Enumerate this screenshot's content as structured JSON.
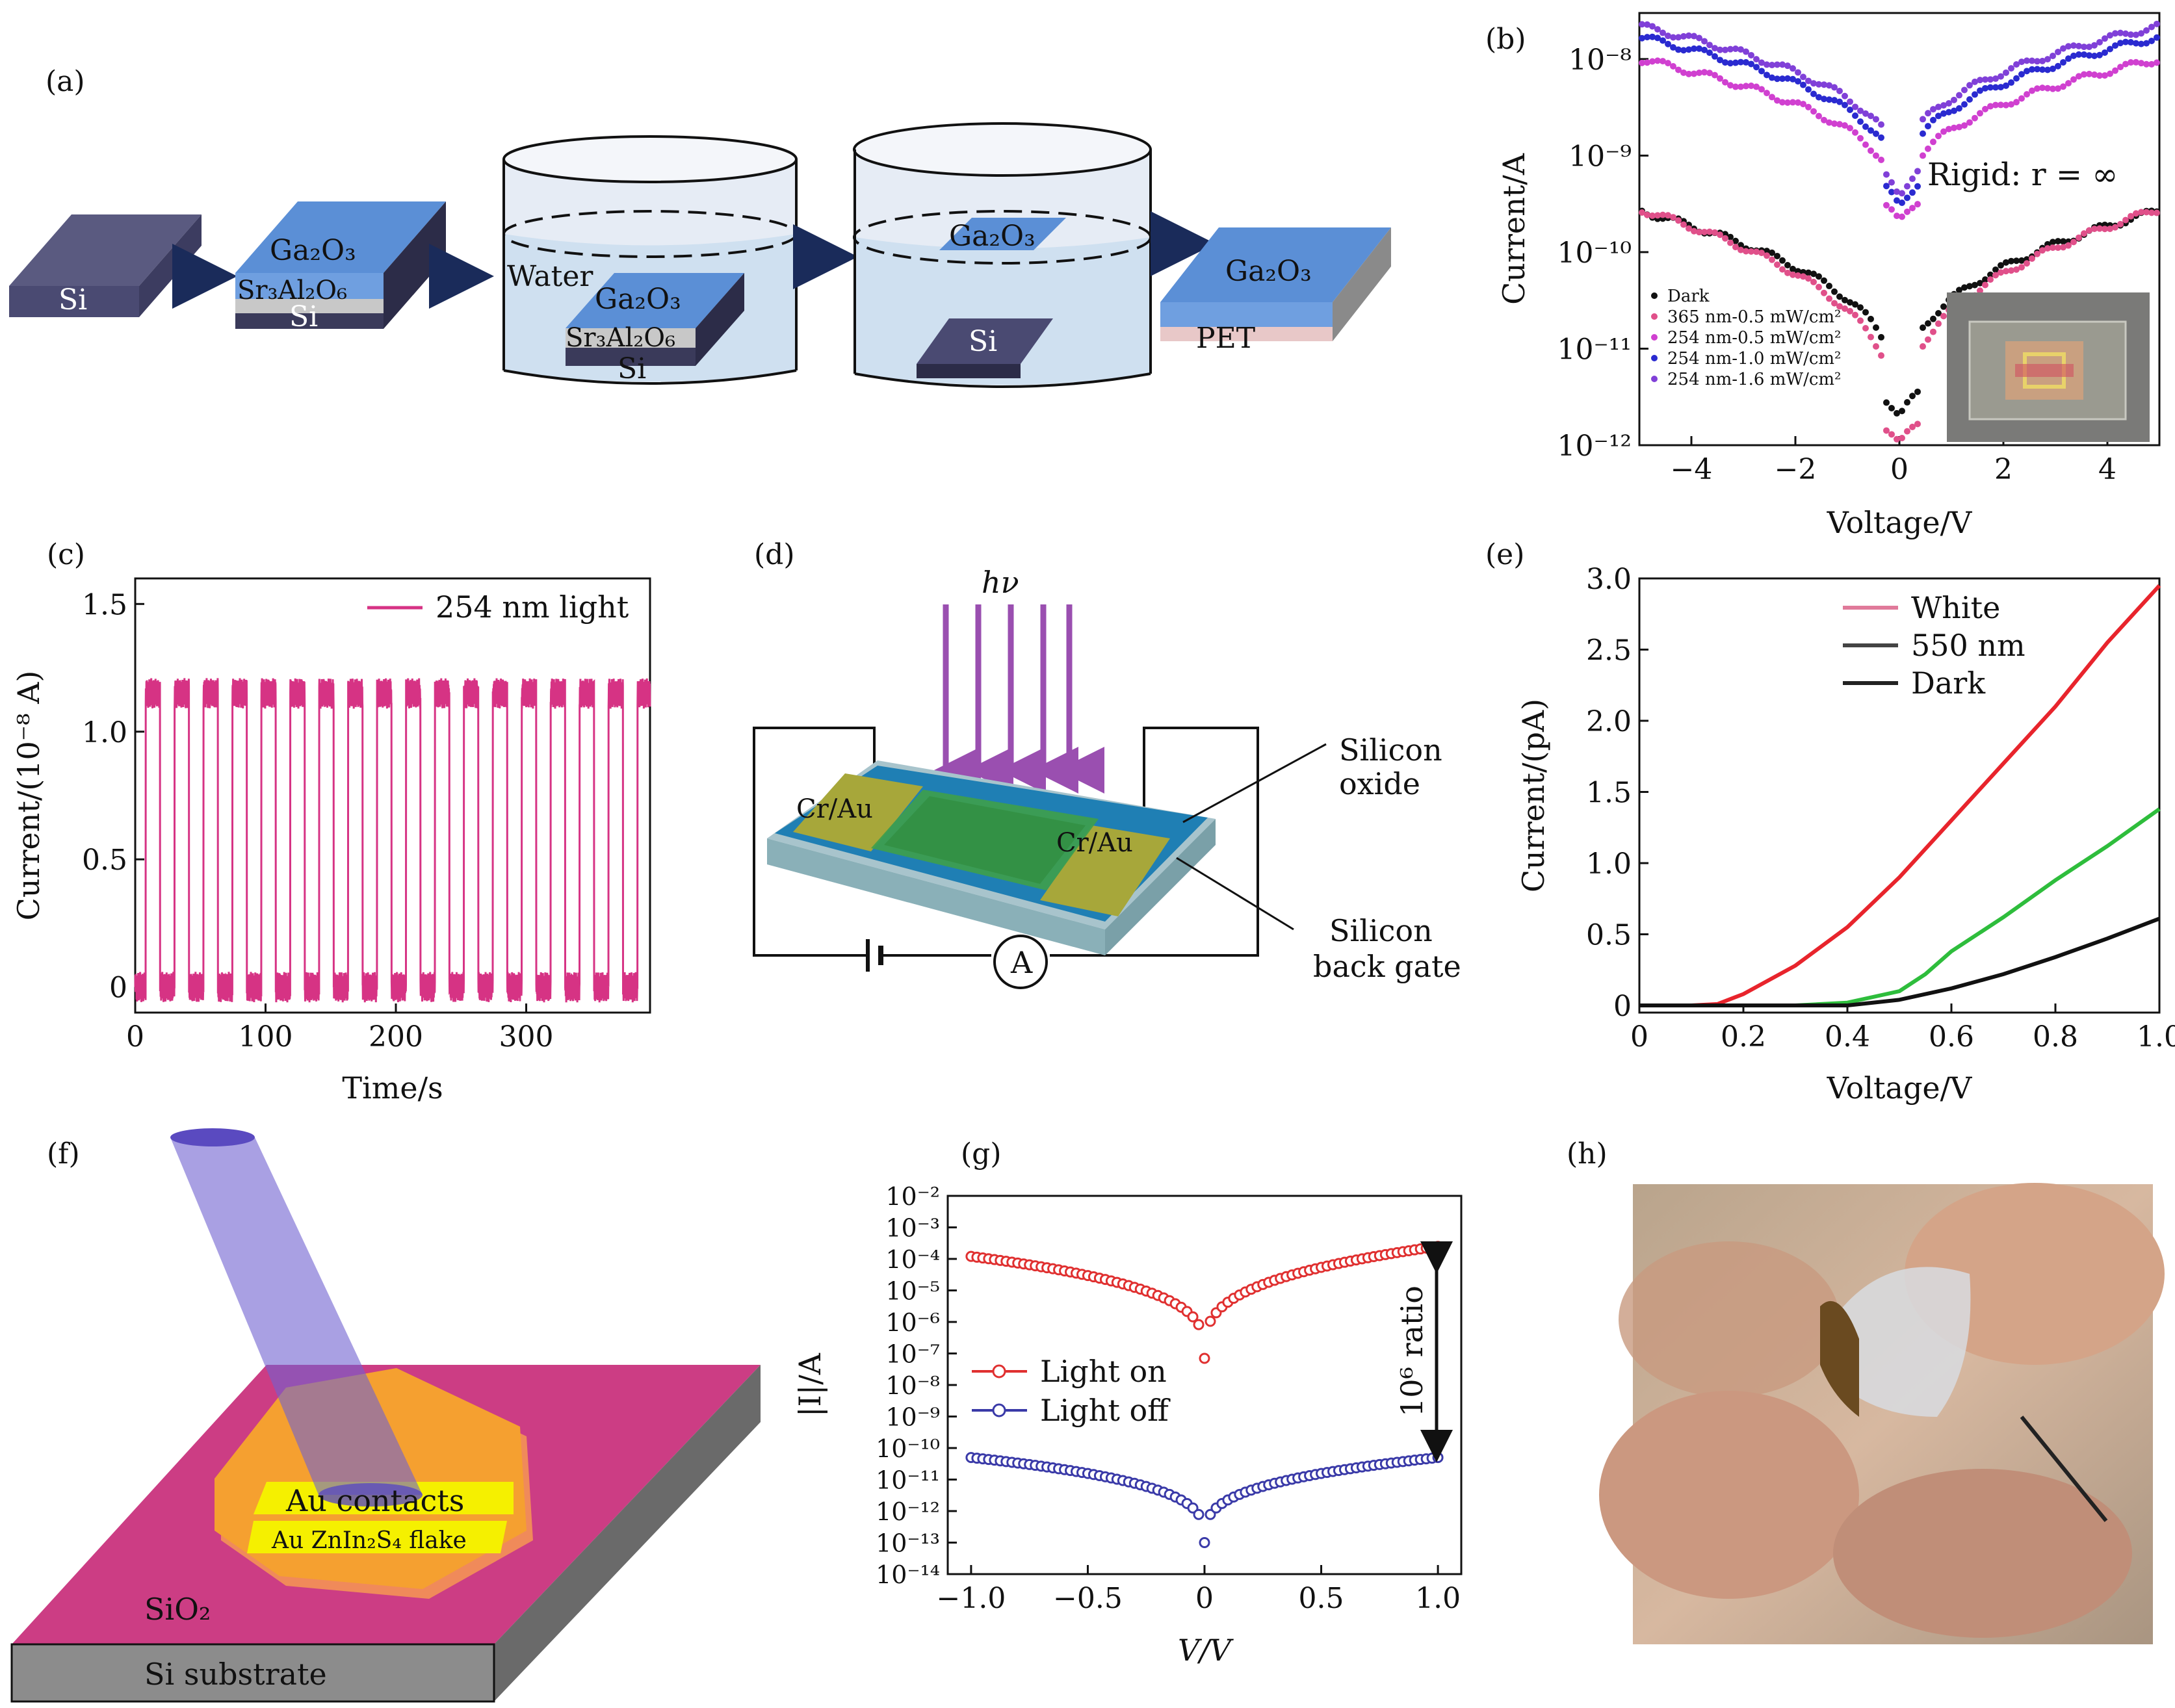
{
  "panels": {
    "a": {
      "label": "(a)",
      "texts": {
        "si": "Si",
        "ga2o3": "Ga₂O₃",
        "sr3al2o6": "Sr₃Al₂O₆",
        "water": "Water",
        "pet": "PET"
      }
    },
    "b": {
      "label": "(b)",
      "annotation": "Rigid: r = ∞",
      "inset_icon": "device-photo-icon"
    },
    "c": {
      "label": "(c)"
    },
    "d": {
      "label": "(d)",
      "texts": {
        "hv": "hν",
        "cr_au": "Cr/Au",
        "silicon_oxide_1": "Silicon",
        "silicon_oxide_2": "oxide",
        "silicon_gate_1": "Silicon",
        "silicon_gate_2": "back gate",
        "ammeter": "A"
      }
    },
    "e": {
      "label": "(e)"
    },
    "f": {
      "label": "(f)",
      "texts": {
        "au_contacts": "Au contacts",
        "flake": "Au ZnIn₂S₄ flake",
        "sio2": "SiO₂",
        "substrate": "Si substrate"
      }
    },
    "g": {
      "label": "(g)",
      "ratio": "10⁶ ratio"
    },
    "h": {
      "label": "(h)",
      "photo_icon": "bent-device-photo-icon"
    }
  },
  "chart_data": [
    {
      "id": "b",
      "type": "scatter",
      "title": "",
      "xlabel": "Voltage/V",
      "ylabel": "Current/A",
      "yscale": "log",
      "xlim": [
        -5,
        5
      ],
      "ylim": [
        1e-12,
        3e-08
      ],
      "xticks": [
        "−4",
        "−2",
        "0",
        "2",
        "4"
      ],
      "yticks": [
        "10⁻¹²",
        "10⁻¹¹",
        "10⁻¹⁰",
        "10⁻⁹",
        "10⁻⁸"
      ],
      "series": [
        {
          "name": "Dark",
          "color": "#111111",
          "amp": 2.7e-10,
          "min": 2e-12
        },
        {
          "name": "365 nm-0.5 mW/cm²",
          "color": "#e0508a",
          "amp": 2.8e-10,
          "min": 1e-12
        },
        {
          "name": "254 nm-0.5 mW/cm²",
          "color": "#d040d0",
          "amp": 1e-08,
          "min": 2e-10
        },
        {
          "name": "254 nm-1.0 mW/cm²",
          "color": "#2a2ad0",
          "amp": 1.7e-08,
          "min": 3e-10
        },
        {
          "name": "254 nm-1.6 mW/cm²",
          "color": "#8040d8",
          "amp": 2.2e-08,
          "min": 4e-10
        }
      ]
    },
    {
      "id": "c",
      "type": "line",
      "title": "",
      "xlabel": "Time/s",
      "ylabel": "Current/(10⁻⁸ A)",
      "xlim": [
        0,
        395
      ],
      "ylim": [
        -0.1,
        1.6
      ],
      "xticks": [
        "0",
        "100",
        "200",
        "300"
      ],
      "yticks": [
        "0",
        "0.5",
        "1.0",
        "1.5"
      ],
      "series": [
        {
          "name": "254 nm light",
          "color": "#d63384",
          "period": 22.2,
          "on_level": 1.15,
          "off_level": 0.0,
          "cycles": 18
        }
      ]
    },
    {
      "id": "e",
      "type": "line",
      "title": "",
      "xlabel": "Voltage/V",
      "ylabel": "Current/(pA)",
      "xlim": [
        0,
        1.0
      ],
      "ylim": [
        -0.05,
        3.0
      ],
      "xticks": [
        "0",
        "0.2",
        "0.4",
        "0.6",
        "0.8",
        "1.0"
      ],
      "yticks": [
        "0",
        "0.5",
        "1.0",
        "1.5",
        "2.0",
        "2.5",
        "3.0"
      ],
      "series": [
        {
          "name": "White",
          "color": "#e8242c",
          "x": [
            0,
            0.1,
            0.15,
            0.2,
            0.3,
            0.4,
            0.5,
            0.6,
            0.7,
            0.8,
            0.9,
            1.0
          ],
          "values": [
            0,
            0,
            0.01,
            0.08,
            0.28,
            0.55,
            0.9,
            1.3,
            1.7,
            2.1,
            2.55,
            2.95
          ]
        },
        {
          "name": "550 nm",
          "color": "#2ebd3c",
          "x": [
            0,
            0.3,
            0.4,
            0.5,
            0.55,
            0.6,
            0.7,
            0.8,
            0.9,
            1.0
          ],
          "values": [
            0,
            0,
            0.02,
            0.1,
            0.22,
            0.38,
            0.62,
            0.88,
            1.12,
            1.38
          ]
        },
        {
          "name": "Dark",
          "color": "#111111",
          "x": [
            0,
            0.4,
            0.5,
            0.6,
            0.7,
            0.8,
            0.9,
            1.0
          ],
          "values": [
            0,
            0,
            0.04,
            0.12,
            0.22,
            0.34,
            0.47,
            0.61
          ]
        }
      ],
      "legend_text_names": [
        "White",
        "550 nm",
        "Dark"
      ],
      "legend_colors": [
        "#e07a9a",
        "#444444",
        "#222222"
      ]
    },
    {
      "id": "g",
      "type": "scatter",
      "title": "",
      "xlabel": "V/V",
      "ylabel": "|I|/A",
      "yscale": "log",
      "xlim": [
        -1.1,
        1.1
      ],
      "ylim": [
        1e-14,
        0.01
      ],
      "xticks": [
        "−1.0",
        "−0.5",
        "0",
        "0.5",
        "1.0"
      ],
      "yticks": [
        "10⁻¹⁴",
        "10⁻¹³",
        "10⁻¹²",
        "10⁻¹¹",
        "10⁻¹⁰",
        "10⁻⁹",
        "10⁻⁸",
        "10⁻⁷",
        "10⁻⁶",
        "10⁻⁵",
        "10⁻⁴",
        "10⁻³",
        "10⁻²"
      ],
      "series": [
        {
          "name": "Light on",
          "color": "#e03030",
          "left": 0.00012,
          "right": 0.00025,
          "min": 7e-08
        },
        {
          "name": "Light off",
          "color": "#3a3aa8",
          "left": 5e-11,
          "right": 5e-11,
          "min": 1e-13
        }
      ]
    }
  ]
}
